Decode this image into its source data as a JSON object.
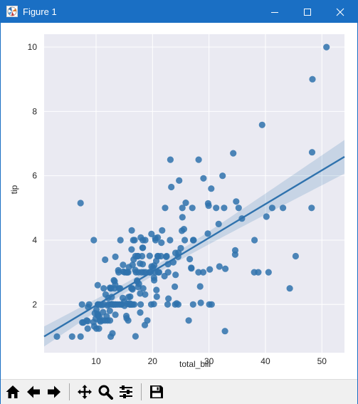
{
  "window": {
    "title": "Figure 1",
    "titlebar_color": "#1a6fc4",
    "controls": [
      "minimize-icon",
      "maximize-icon",
      "close-icon"
    ]
  },
  "toolbar": {
    "buttons": [
      "home-icon",
      "back-icon",
      "forward-icon",
      "pan-icon",
      "zoom-icon",
      "configure-subplots-icon",
      "save-icon"
    ]
  },
  "chart_data": {
    "type": "scatter",
    "title": "",
    "xlabel": "total_bill",
    "ylabel": "tip",
    "xlim": [
      0.8,
      54.0
    ],
    "ylim": [
      0.5,
      10.4
    ],
    "xticks": [
      10,
      20,
      30,
      40,
      50
    ],
    "yticks": [
      2,
      4,
      6,
      8,
      10
    ],
    "grid": true,
    "background": "#eaeaf2",
    "color": "#2f72ad",
    "regression": {
      "slope": 0.105,
      "intercept": 0.92,
      "show_ci": true
    },
    "points": [
      [
        3.07,
        1.0
      ],
      [
        5.75,
        1.0
      ],
      [
        7.25,
        1.0
      ],
      [
        7.25,
        5.15
      ],
      [
        7.51,
        2.0
      ],
      [
        7.56,
        1.44
      ],
      [
        7.74,
        1.44
      ],
      [
        8.35,
        1.5
      ],
      [
        8.51,
        1.25
      ],
      [
        8.52,
        1.48
      ],
      [
        8.58,
        1.92
      ],
      [
        8.77,
        2.0
      ],
      [
        9.55,
        1.45
      ],
      [
        9.6,
        4.0
      ],
      [
        9.68,
        1.32
      ],
      [
        9.78,
        1.73
      ],
      [
        9.94,
        1.56
      ],
      [
        10.07,
        1.83
      ],
      [
        10.07,
        1.25
      ],
      [
        10.27,
        1.71
      ],
      [
        10.29,
        2.6
      ],
      [
        10.33,
        1.67
      ],
      [
        10.33,
        2.0
      ],
      [
        10.34,
        1.66
      ],
      [
        10.34,
        2.0
      ],
      [
        10.51,
        1.25
      ],
      [
        10.59,
        1.61
      ],
      [
        10.63,
        2.0
      ],
      [
        10.65,
        1.5
      ],
      [
        10.77,
        1.47
      ],
      [
        11.02,
        1.98
      ],
      [
        11.17,
        1.5
      ],
      [
        11.24,
        1.76
      ],
      [
        11.35,
        2.5
      ],
      [
        11.38,
        2.0
      ],
      [
        11.59,
        1.5
      ],
      [
        11.61,
        3.39
      ],
      [
        11.69,
        2.31
      ],
      [
        11.87,
        1.63
      ],
      [
        12.02,
        1.97
      ],
      [
        12.03,
        1.5
      ],
      [
        12.16,
        2.2
      ],
      [
        12.26,
        2.0
      ],
      [
        12.43,
        1.8
      ],
      [
        12.46,
        1.5
      ],
      [
        12.48,
        2.52
      ],
      [
        12.54,
        2.5
      ],
      [
        12.6,
        1.0
      ],
      [
        12.66,
        2.5
      ],
      [
        12.69,
        2.0
      ],
      [
        12.74,
        2.01
      ],
      [
        12.76,
        2.23
      ],
      [
        12.9,
        1.1
      ],
      [
        13.0,
        2.0
      ],
      [
        13.03,
        2.0
      ],
      [
        13.13,
        2.0
      ],
      [
        13.16,
        2.75
      ],
      [
        13.27,
        2.5
      ],
      [
        13.28,
        2.72
      ],
      [
        13.37,
        2.0
      ],
      [
        13.39,
        2.61
      ],
      [
        13.42,
        3.48
      ],
      [
        13.42,
        1.68
      ],
      [
        13.51,
        2.0
      ],
      [
        13.81,
        2.0
      ],
      [
        13.94,
        3.06
      ],
      [
        14.0,
        3.0
      ],
      [
        14.07,
        2.5
      ],
      [
        14.15,
        2.0
      ],
      [
        14.26,
        2.5
      ],
      [
        14.31,
        4.0
      ],
      [
        14.48,
        2.0
      ],
      [
        14.52,
        2.0
      ],
      [
        14.73,
        2.2
      ],
      [
        14.78,
        3.23
      ],
      [
        14.83,
        3.02
      ],
      [
        15.01,
        2.09
      ],
      [
        15.04,
        1.96
      ],
      [
        15.06,
        3.0
      ],
      [
        15.36,
        1.64
      ],
      [
        15.38,
        3.0
      ],
      [
        15.42,
        1.57
      ],
      [
        15.48,
        2.02
      ],
      [
        15.53,
        3.0
      ],
      [
        15.69,
        1.5
      ],
      [
        15.69,
        3.0
      ],
      [
        15.77,
        2.23
      ],
      [
        15.81,
        3.16
      ],
      [
        15.95,
        2.0
      ],
      [
        15.98,
        2.03
      ],
      [
        16.0,
        2.0
      ],
      [
        16.04,
        2.24
      ],
      [
        16.21,
        2.0
      ],
      [
        16.27,
        2.5
      ],
      [
        16.29,
        3.71
      ],
      [
        16.31,
        2.0
      ],
      [
        16.32,
        4.3
      ],
      [
        16.4,
        2.5
      ],
      [
        16.45,
        2.47
      ],
      [
        16.47,
        3.23
      ],
      [
        16.49,
        2.0
      ],
      [
        16.58,
        4.0
      ],
      [
        16.66,
        3.4
      ],
      [
        16.76,
        2.0
      ],
      [
        16.82,
        4.0
      ],
      [
        16.93,
        3.07
      ],
      [
        16.97,
        3.5
      ],
      [
        16.99,
        1.01
      ],
      [
        17.07,
        3.0
      ],
      [
        17.26,
        2.74
      ],
      [
        17.29,
        2.71
      ],
      [
        17.31,
        3.5
      ],
      [
        17.46,
        2.54
      ],
      [
        17.47,
        3.5
      ],
      [
        17.51,
        3.0
      ],
      [
        17.59,
        2.64
      ],
      [
        17.78,
        3.27
      ],
      [
        17.81,
        2.34
      ],
      [
        17.82,
        1.75
      ],
      [
        17.89,
        2.0
      ],
      [
        17.92,
        4.08
      ],
      [
        18.04,
        3.0
      ],
      [
        18.15,
        3.5
      ],
      [
        18.24,
        3.76
      ],
      [
        18.26,
        3.25
      ],
      [
        18.28,
        4.0
      ],
      [
        18.29,
        3.76
      ],
      [
        18.35,
        2.5
      ],
      [
        18.43,
        3.0
      ],
      [
        18.64,
        1.36
      ],
      [
        18.69,
        2.31
      ],
      [
        18.71,
        4.0
      ],
      [
        18.78,
        3.0
      ],
      [
        19.08,
        1.5
      ],
      [
        19.44,
        3.0
      ],
      [
        19.49,
        3.51
      ],
      [
        19.65,
        3.0
      ],
      [
        19.77,
        2.0
      ],
      [
        19.81,
        4.19
      ],
      [
        19.82,
        3.18
      ],
      [
        20.08,
        3.15
      ],
      [
        20.23,
        2.01
      ],
      [
        20.27,
        2.83
      ],
      [
        20.29,
        2.75
      ],
      [
        20.29,
        3.21
      ],
      [
        20.45,
        3.0
      ],
      [
        20.49,
        4.06
      ],
      [
        20.53,
        4.0
      ],
      [
        20.65,
        3.35
      ],
      [
        20.69,
        2.45
      ],
      [
        20.76,
        2.24
      ],
      [
        20.9,
        3.5
      ],
      [
        20.92,
        4.08
      ],
      [
        21.01,
        3.5
      ],
      [
        21.01,
        3.0
      ],
      [
        21.16,
        3.0
      ],
      [
        21.5,
        3.5
      ],
      [
        21.58,
        3.92
      ],
      [
        21.7,
        4.3
      ],
      [
        22.12,
        2.88
      ],
      [
        22.23,
        5.0
      ],
      [
        22.42,
        3.48
      ],
      [
        22.49,
        3.5
      ],
      [
        22.67,
        2.0
      ],
      [
        22.75,
        3.25
      ],
      [
        22.76,
        3.0
      ],
      [
        22.82,
        2.18
      ],
      [
        23.1,
        4.0
      ],
      [
        23.17,
        6.5
      ],
      [
        23.33,
        5.65
      ],
      [
        23.68,
        3.31
      ],
      [
        23.95,
        2.55
      ],
      [
        24.01,
        2.0
      ],
      [
        24.06,
        3.6
      ],
      [
        24.08,
        2.92
      ],
      [
        24.27,
        2.03
      ],
      [
        24.52,
        3.48
      ],
      [
        24.55,
        2.0
      ],
      [
        24.59,
        3.61
      ],
      [
        24.71,
        5.85
      ],
      [
        25.0,
        3.75
      ],
      [
        25.21,
        4.29
      ],
      [
        25.28,
        5.0
      ],
      [
        25.29,
        4.71
      ],
      [
        25.56,
        4.34
      ],
      [
        25.71,
        4.0
      ],
      [
        25.89,
        5.16
      ],
      [
        26.41,
        1.5
      ],
      [
        26.59,
        3.41
      ],
      [
        26.86,
        3.14
      ],
      [
        26.88,
        3.12
      ],
      [
        27.05,
        5.0
      ],
      [
        27.18,
        2.0
      ],
      [
        27.2,
        4.0
      ],
      [
        27.28,
        4.0
      ],
      [
        28.15,
        3.0
      ],
      [
        28.17,
        6.5
      ],
      [
        28.44,
        2.56
      ],
      [
        28.55,
        2.05
      ],
      [
        28.97,
        3.0
      ],
      [
        29.03,
        5.92
      ],
      [
        29.8,
        4.2
      ],
      [
        29.85,
        5.14
      ],
      [
        29.93,
        5.07
      ],
      [
        30.06,
        2.0
      ],
      [
        30.14,
        3.09
      ],
      [
        30.4,
        5.6
      ],
      [
        30.46,
        2.0
      ],
      [
        31.27,
        5.0
      ],
      [
        31.71,
        4.5
      ],
      [
        31.85,
        3.18
      ],
      [
        32.4,
        6.0
      ],
      [
        32.68,
        5.0
      ],
      [
        32.83,
        1.17
      ],
      [
        32.9,
        3.11
      ],
      [
        34.3,
        6.7
      ],
      [
        34.63,
        3.55
      ],
      [
        34.65,
        3.68
      ],
      [
        34.81,
        5.2
      ],
      [
        35.26,
        5.0
      ],
      [
        35.83,
        4.67
      ],
      [
        38.01,
        3.0
      ],
      [
        38.07,
        4.0
      ],
      [
        38.73,
        3.0
      ],
      [
        39.42,
        7.58
      ],
      [
        40.17,
        4.73
      ],
      [
        40.55,
        3.0
      ],
      [
        41.19,
        5.0
      ],
      [
        43.11,
        5.0
      ],
      [
        44.3,
        2.5
      ],
      [
        45.35,
        3.5
      ],
      [
        48.17,
        5.0
      ],
      [
        48.27,
        6.73
      ],
      [
        48.33,
        9.0
      ],
      [
        50.81,
        10.0
      ]
    ]
  }
}
